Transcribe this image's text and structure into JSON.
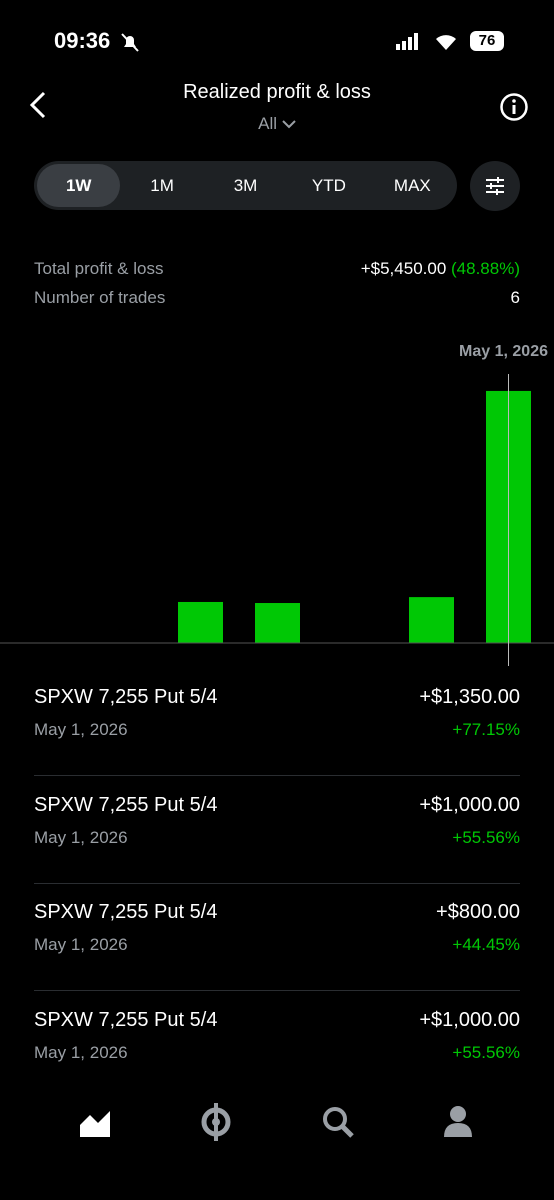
{
  "status_bar": {
    "time": "09:36",
    "battery": "76"
  },
  "header": {
    "title": "Realized profit & loss",
    "filter": "All"
  },
  "periods": [
    "1W",
    "1M",
    "3M",
    "YTD",
    "MAX"
  ],
  "summary": [
    {
      "label": "Total profit & loss",
      "value": "+$5,450.00",
      "change": "(48.88%)"
    },
    {
      "label": "Number of trades",
      "value": "6"
    }
  ],
  "chart_data": {
    "type": "bar",
    "annotation": "May 1, 2026",
    "categories": [
      null,
      null,
      null,
      null,
      null,
      null,
      null
    ],
    "values": [
      0,
      0,
      590,
      575,
      0,
      660,
      3625
    ],
    "color": "#00c805",
    "ylim": [
      0,
      4070
    ]
  },
  "trades": [
    {
      "name": "SPXW 7,255 Put 5/4",
      "date": "May 1, 2026",
      "pnl": "+$1,350.00",
      "pct": "+77.15%"
    },
    {
      "name": "SPXW 7,255 Put 5/4",
      "date": "May 1, 2026",
      "pnl": "+$1,000.00",
      "pct": "+55.56%"
    },
    {
      "name": "SPXW 7,255 Put 5/4",
      "date": "May 1, 2026",
      "pnl": "+$800.00",
      "pct": "+44.45%"
    },
    {
      "name": "SPXW 7,255 Put 5/4",
      "date": "May 1, 2026",
      "pnl": "+$1,000.00",
      "pct": "+55.56%"
    }
  ]
}
